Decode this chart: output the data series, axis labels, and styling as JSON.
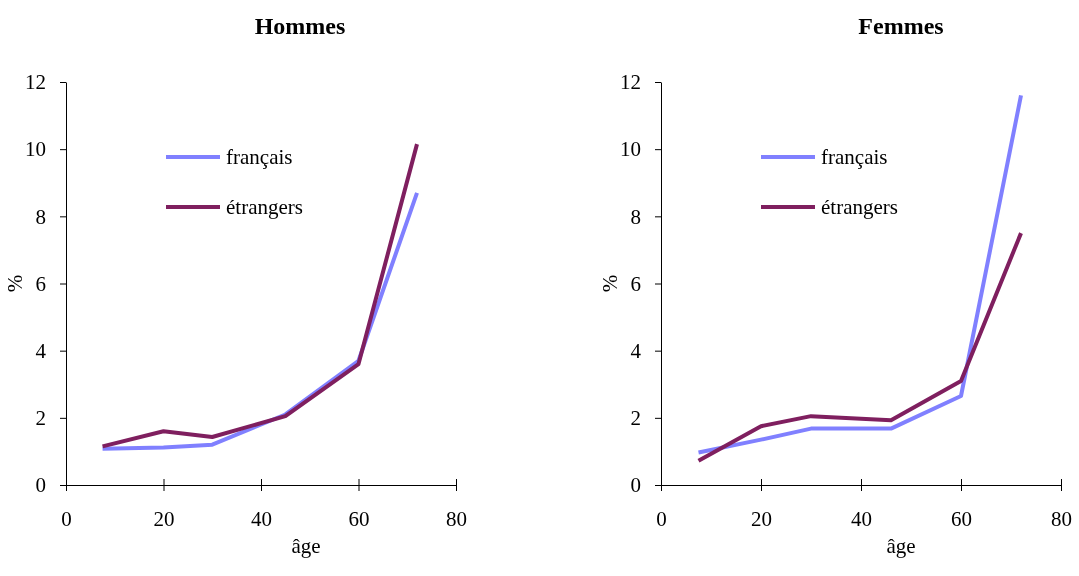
{
  "chart_data": [
    {
      "type": "line",
      "title": "Hommes",
      "xlabel": "âge",
      "ylabel": "%",
      "x": [
        7.5,
        20,
        30,
        45,
        60,
        72
      ],
      "xlim": [
        0,
        80
      ],
      "xticks": [
        0,
        20,
        40,
        60,
        80
      ],
      "ylim": [
        0,
        12
      ],
      "yticks": [
        0,
        2,
        4,
        6,
        8,
        10,
        12
      ],
      "grid": false,
      "legend": "top",
      "marker": "none",
      "line_style": "solid",
      "series": [
        {
          "name": "français",
          "color": "#8080ff",
          "values": [
            1.08,
            1.12,
            1.2,
            2.1,
            3.7,
            8.7
          ]
        },
        {
          "name": "étrangers",
          "color": "#7f1f5f",
          "values": [
            1.15,
            1.6,
            1.43,
            2.05,
            3.6,
            10.15
          ]
        }
      ]
    },
    {
      "type": "line",
      "title": "Femmes",
      "xlabel": "âge",
      "ylabel": "%",
      "x": [
        7.5,
        20,
        30,
        46,
        60,
        72
      ],
      "xlim": [
        0,
        80
      ],
      "xticks": [
        0,
        20,
        40,
        60,
        80
      ],
      "ylim": [
        0,
        12
      ],
      "yticks": [
        0,
        2,
        4,
        6,
        8,
        10,
        12
      ],
      "grid": false,
      "legend": "top",
      "marker": "none",
      "line_style": "solid",
      "series": [
        {
          "name": "français",
          "color": "#8080ff",
          "values": [
            0.97,
            1.35,
            1.68,
            1.68,
            2.65,
            11.6
          ]
        },
        {
          "name": "étrangers",
          "color": "#7f1f5f",
          "values": [
            0.72,
            1.75,
            2.05,
            1.93,
            3.1,
            7.5
          ]
        }
      ]
    }
  ]
}
